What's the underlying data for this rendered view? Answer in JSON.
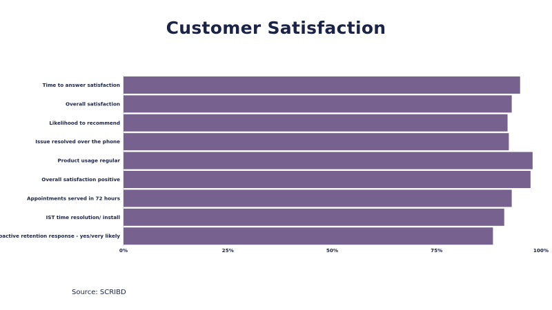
{
  "chart_data": {
    "type": "bar",
    "orientation": "horizontal",
    "title": "Customer Satisfaction",
    "categories": [
      "Time to answer satisfaction",
      "Overall satisfaction",
      "Likelihood to recommend",
      "Issue resolved over the phone",
      "Product usage regular",
      "Overall satisfaction positive",
      "Appointments served in 72 hours",
      "IST time resolution/ install",
      "Proactive retention response - yes/very likely"
    ],
    "values": [
      95,
      93,
      92,
      92.3,
      98,
      97.5,
      93,
      91.2,
      88.5
    ],
    "xlim": [
      0,
      100
    ],
    "xticks": [
      0,
      25,
      50,
      75,
      100
    ],
    "xtick_labels": [
      "0%",
      "25%",
      "50%",
      "75%",
      "100%"
    ],
    "bar_color": "#77618f",
    "grid": false,
    "legend": "none"
  },
  "source": "Source: SCRIBD",
  "colors": {
    "text": "#1b2346",
    "bar": "#77618f"
  }
}
